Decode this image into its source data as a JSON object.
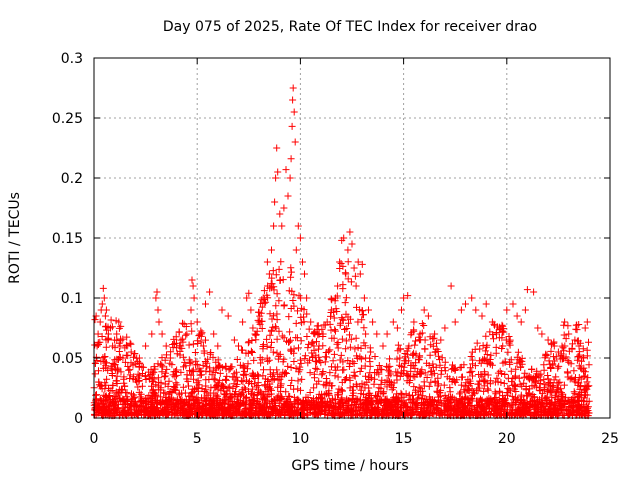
{
  "chart_data": {
    "type": "scatter",
    "title": "Day 075 of 2025, Rate Of TEC Index for receiver drao",
    "xlabel": "GPS time / hours",
    "ylabel": "ROTI / TECUs",
    "xlim": [
      0,
      25
    ],
    "ylim": [
      0,
      0.3
    ],
    "xticks": [
      0,
      5,
      10,
      15,
      20,
      25
    ],
    "yticks": [
      0,
      0.05,
      0.1,
      0.15,
      0.2,
      0.25,
      0.3
    ],
    "xtick_labels": [
      "0",
      "5",
      "10",
      "15",
      "20",
      "25"
    ],
    "ytick_labels": [
      "0",
      "0.05",
      "0.1",
      "0.15",
      "0.2",
      "0.25",
      "0.3"
    ],
    "grid": true,
    "marker": "plus",
    "color": "#ff0000",
    "series": [
      {
        "x": [
          0.05,
          0.1,
          0.15,
          0.2,
          0.3,
          0.35,
          0.4,
          0.45,
          0.5,
          0.55,
          0.6,
          0.7,
          0.8,
          0.9,
          1.0,
          1.1,
          1.2,
          1.4,
          1.6,
          1.8,
          2.0,
          2.2,
          2.5,
          2.8,
          3.0,
          3.05,
          3.1,
          3.15,
          3.3,
          3.5,
          3.7,
          4.0,
          4.2,
          4.5,
          4.7,
          4.75,
          4.8,
          4.85,
          5.0,
          5.2,
          5.3,
          5.4,
          5.6,
          5.8,
          6.0,
          6.2,
          6.5,
          6.8,
          7.0,
          7.2,
          7.4,
          7.5,
          7.6,
          7.7,
          7.8,
          8.0,
          8.2,
          8.4,
          8.5,
          8.6,
          8.7,
          8.75,
          8.8,
          8.85,
          8.9,
          9.0,
          9.1,
          9.2,
          9.3,
          9.4,
          9.5,
          9.55,
          9.6,
          9.62,
          9.65,
          9.7,
          9.75,
          9.8,
          9.9,
          10.0,
          10.1,
          10.2,
          10.3,
          10.5,
          10.7,
          10.9,
          11.1,
          11.3,
          11.5,
          11.7,
          11.8,
          11.9,
          12.0,
          12.1,
          12.2,
          12.3,
          12.4,
          12.5,
          12.6,
          12.7,
          12.8,
          12.9,
          13.0,
          13.1,
          13.3,
          13.5,
          13.7,
          14.0,
          14.2,
          14.5,
          14.7,
          14.9,
          15.0,
          15.2,
          15.5,
          15.8,
          16.0,
          16.2,
          16.5,
          16.8,
          17.0,
          17.3,
          17.5,
          17.8,
          18.0,
          18.3,
          18.5,
          18.8,
          19.0,
          19.3,
          19.5,
          19.8,
          20.0,
          20.3,
          20.5,
          20.7,
          20.9,
          21.0,
          21.3,
          21.5,
          21.7,
          22.0,
          22.3,
          22.5,
          22.8,
          23.0,
          23.3,
          23.5,
          23.7,
          23.8,
          23.9
        ],
        "y": [
          0.082,
          0.085,
          0.06,
          0.07,
          0.08,
          0.09,
          0.095,
          0.108,
          0.1,
          0.085,
          0.09,
          0.07,
          0.075,
          0.06,
          0.065,
          0.07,
          0.08,
          0.05,
          0.06,
          0.055,
          0.045,
          0.05,
          0.06,
          0.07,
          0.1,
          0.105,
          0.09,
          0.08,
          0.07,
          0.06,
          0.05,
          0.04,
          0.06,
          0.07,
          0.09,
          0.115,
          0.11,
          0.1,
          0.08,
          0.07,
          0.06,
          0.095,
          0.105,
          0.07,
          0.06,
          0.09,
          0.085,
          0.065,
          0.06,
          0.08,
          0.1,
          0.104,
          0.09,
          0.075,
          0.07,
          0.08,
          0.1,
          0.13,
          0.12,
          0.14,
          0.16,
          0.18,
          0.2,
          0.225,
          0.205,
          0.17,
          0.16,
          0.175,
          0.207,
          0.185,
          0.2,
          0.216,
          0.243,
          0.265,
          0.275,
          0.255,
          0.23,
          0.14,
          0.16,
          0.15,
          0.13,
          0.12,
          0.1,
          0.08,
          0.07,
          0.06,
          0.07,
          0.08,
          0.09,
          0.1,
          0.11,
          0.13,
          0.148,
          0.15,
          0.12,
          0.14,
          0.155,
          0.145,
          0.125,
          0.11,
          0.13,
          0.12,
          0.128,
          0.1,
          0.09,
          0.08,
          0.07,
          0.06,
          0.07,
          0.08,
          0.075,
          0.09,
          0.1,
          0.102,
          0.08,
          0.07,
          0.09,
          0.085,
          0.07,
          0.065,
          0.075,
          0.11,
          0.08,
          0.09,
          0.095,
          0.1,
          0.09,
          0.085,
          0.095,
          0.08,
          0.07,
          0.06,
          0.09,
          0.095,
          0.085,
          0.08,
          0.09,
          0.107,
          0.105,
          0.075,
          0.07,
          0.065,
          0.06,
          0.055,
          0.08,
          0.07,
          0.065,
          0.06,
          0.05,
          0.075,
          0.08
        ]
      }
    ]
  }
}
